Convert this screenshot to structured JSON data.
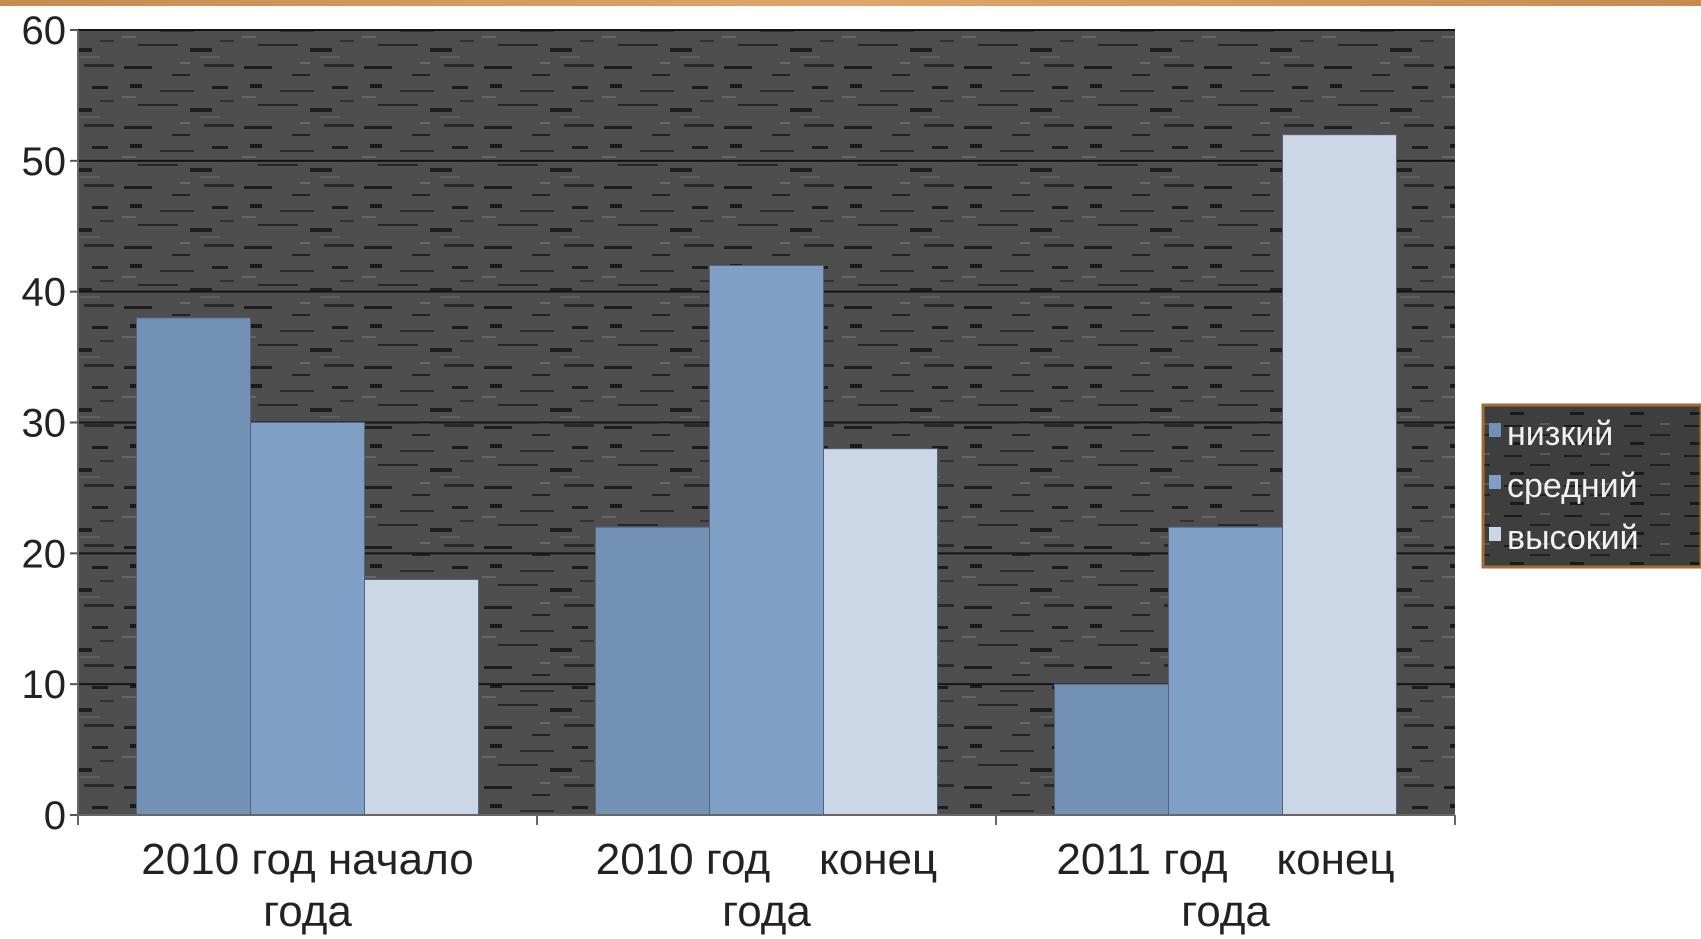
{
  "chart_data": {
    "type": "bar",
    "title": "",
    "xlabel": "",
    "ylabel": "",
    "ylim": [
      0,
      60
    ],
    "yticks": [
      0,
      10,
      20,
      30,
      40,
      50,
      60
    ],
    "categories": [
      [
        "2010 год начало",
        "года"
      ],
      [
        "2010 год    конец",
        "года"
      ],
      [
        "2011 год    конец",
        "года"
      ]
    ],
    "series": [
      {
        "name": "низкий",
        "values": [
          38,
          22,
          10
        ],
        "color": "#7391b4"
      },
      {
        "name": "средний",
        "values": [
          30,
          42,
          22
        ],
        "color": "#7f9fc6"
      },
      {
        "name": "высокий",
        "values": [
          18,
          28,
          52
        ],
        "color": "#cbd6e6"
      }
    ],
    "grid": true,
    "legend": "right",
    "plot_background": "#4a4a4a",
    "legend_background": "#3c3c3c",
    "legend_border": "#a36a3a",
    "top_band_color": "#d8995e"
  }
}
